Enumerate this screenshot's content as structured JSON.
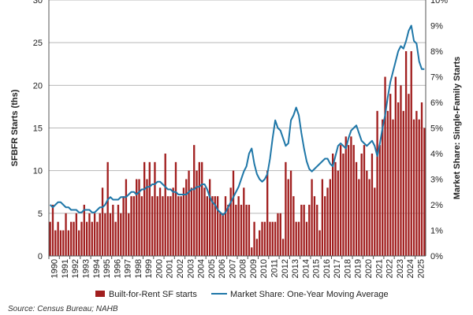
{
  "chart_data": {
    "type": "bar+line",
    "title": "",
    "ylabel_left": "SFBFR Starts (ths)",
    "ylabel_right": "Market Share: Single-Family Starts",
    "ylim_left": [
      0,
      30
    ],
    "ylim_right": [
      0,
      10
    ],
    "yticks_left": [
      "0",
      "5",
      "10",
      "15",
      "20",
      "25",
      "30"
    ],
    "yticks_right": [
      "0%",
      "1%",
      "2%",
      "3%",
      "4%",
      "5%",
      "6%",
      "7%",
      "8%",
      "9%",
      "10%"
    ],
    "x_years": [
      "1990",
      "1991",
      "1992",
      "1993",
      "1994",
      "1995",
      "1996",
      "1997",
      "1998",
      "1999",
      "2000",
      "2001",
      "2002",
      "2003",
      "2004",
      "2005",
      "2006",
      "2007",
      "2008",
      "2009",
      "2010",
      "2011",
      "2012",
      "2013",
      "2014",
      "2015",
      "2016",
      "2017",
      "2018",
      "2019",
      "2020",
      "2021",
      "2022",
      "2023",
      "2024",
      "2025"
    ],
    "grid": true,
    "legend_position": "bottom",
    "series": [
      {
        "name": "Built-for-Rent SF starts",
        "type": "bar",
        "color": "#a11f1f",
        "quarterly_values": [
          [
            4,
            6,
            3,
            4
          ],
          [
            3,
            3,
            5,
            3
          ],
          [
            4,
            4,
            5,
            3
          ],
          [
            4,
            6,
            4,
            5
          ],
          [
            4,
            5,
            4,
            5
          ],
          [
            8,
            5,
            11,
            5
          ],
          [
            6,
            4,
            6,
            5
          ],
          [
            7,
            9,
            5,
            7
          ],
          [
            7,
            9,
            9,
            7
          ],
          [
            11,
            9,
            11,
            7
          ],
          [
            11,
            7,
            8,
            7
          ],
          [
            12,
            7,
            7,
            8
          ],
          [
            11,
            7,
            7,
            8
          ],
          [
            9,
            10,
            8,
            13
          ],
          [
            10,
            11,
            11,
            8
          ],
          [
            7,
            9,
            7,
            7
          ],
          [
            7,
            5,
            5,
            7
          ],
          [
            6,
            8,
            10,
            6
          ],
          [
            7,
            6,
            8,
            6
          ],
          [
            6,
            1,
            4,
            2
          ],
          [
            3,
            4,
            4,
            10
          ],
          [
            4,
            4,
            4,
            5
          ],
          [
            5,
            2,
            11,
            9
          ],
          [
            10,
            7,
            4,
            4
          ],
          [
            6,
            6,
            4,
            6
          ],
          [
            9,
            7,
            6,
            3
          ],
          [
            9,
            7,
            8,
            9
          ],
          [
            12,
            11,
            10,
            13
          ],
          [
            12,
            14,
            13,
            14
          ],
          [
            13,
            11,
            9,
            12
          ],
          [
            13,
            10,
            9,
            12
          ],
          [
            8,
            17,
            13,
            16
          ],
          [
            21,
            17,
            19,
            16
          ],
          [
            21,
            18,
            20,
            17
          ],
          [
            24,
            19,
            24,
            16
          ],
          [
            17,
            16,
            18,
            15
          ]
        ]
      },
      {
        "name": "Market Share: One-Year Moving Average",
        "type": "line",
        "color": "#1f77a8",
        "axis": "right",
        "quarterly_values": [
          [
            2.0,
            1.9,
            2.0,
            2.1
          ],
          [
            2.1,
            2.0,
            1.9,
            1.9
          ],
          [
            1.8,
            1.8,
            1.8,
            1.7
          ],
          [
            1.7,
            1.8,
            1.8,
            1.8
          ],
          [
            1.7,
            1.7,
            1.8,
            1.9
          ],
          [
            1.9,
            2.0,
            2.2,
            2.3
          ],
          [
            2.2,
            2.2,
            2.2,
            2.3
          ],
          [
            2.3,
            2.3,
            2.4,
            2.5
          ],
          [
            2.5,
            2.4,
            2.5,
            2.6
          ],
          [
            2.6,
            2.7,
            2.7,
            2.8
          ],
          [
            2.8,
            2.9,
            2.9,
            2.8
          ],
          [
            2.7,
            2.6,
            2.6,
            2.5
          ],
          [
            2.5,
            2.4,
            2.4,
            2.4
          ],
          [
            2.4,
            2.5,
            2.6,
            2.6
          ],
          [
            2.7,
            2.7,
            2.8,
            2.8
          ],
          [
            2.6,
            2.3,
            2.1,
            2.0
          ],
          [
            1.8,
            1.7,
            1.6,
            1.7
          ],
          [
            1.9,
            2.1,
            2.3,
            2.5
          ],
          [
            2.7,
            3.0,
            3.3,
            3.5
          ],
          [
            4.0,
            4.2,
            3.6,
            3.2
          ],
          [
            3.0,
            2.9,
            3.0,
            3.2
          ],
          [
            3.8,
            4.6,
            5.3,
            5.0
          ],
          [
            4.9,
            4.6,
            4.3,
            4.4
          ],
          [
            5.3,
            5.5,
            5.8,
            5.5
          ],
          [
            4.8,
            4.2,
            3.7,
            3.4
          ],
          [
            3.3,
            3.4,
            3.5,
            3.6
          ],
          [
            3.7,
            3.8,
            3.8,
            3.6
          ],
          [
            3.5,
            3.9,
            4.3,
            4.4
          ],
          [
            4.3,
            4.2,
            4.6,
            4.9
          ],
          [
            5.0,
            5.1,
            4.8,
            4.5
          ],
          [
            4.4,
            4.3,
            4.4,
            4.5
          ],
          [
            4.3,
            3.9,
            4.4,
            5.0
          ],
          [
            5.5,
            6.2,
            6.8,
            7.2
          ],
          [
            7.6,
            8.0,
            8.2,
            8.1
          ],
          [
            8.4,
            8.8,
            9.0,
            8.4
          ],
          [
            8.3,
            7.6,
            7.3,
            7.3
          ]
        ]
      }
    ],
    "source": "Source: Census Bureau; NAHB"
  }
}
